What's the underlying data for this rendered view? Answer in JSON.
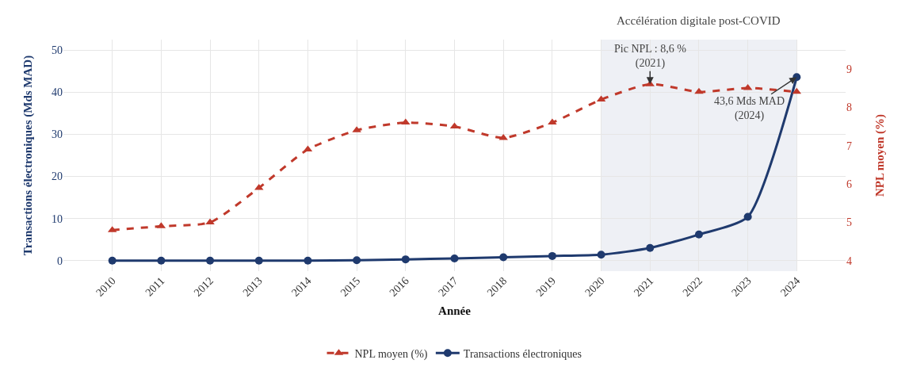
{
  "chart_data": {
    "type": "line",
    "xlabel": "Année",
    "ylabel": "Transactions électroniques (Mds MAD)",
    "y2label": "NPL moyen (%)",
    "categories": [
      "2010",
      "2011",
      "2012",
      "2013",
      "2014",
      "2015",
      "2016",
      "2017",
      "2018",
      "2019",
      "2020",
      "2021",
      "2022",
      "2023",
      "2024"
    ],
    "series": [
      {
        "name": "NPL moyen (%)",
        "color": "#c0392b",
        "axis": "y2",
        "marker": "triangle",
        "line_style": "dashed",
        "values": [
          4.8,
          4.9,
          5.0,
          5.9,
          6.9,
          7.4,
          7.6,
          7.5,
          7.2,
          7.6,
          8.2,
          8.6,
          8.4,
          8.5,
          8.4
        ]
      },
      {
        "name": "Transactions électroniques",
        "color": "#1f3a6e",
        "marker": "circle",
        "line_style": "solid",
        "values": [
          0,
          0,
          0,
          0,
          0,
          0.1,
          0.3,
          0.5,
          0.8,
          1.1,
          1.4,
          3.0,
          6.2,
          10.4,
          43.6
        ]
      }
    ],
    "ylim": [
      -2.5,
      52.5
    ],
    "yticks": [
      0,
      10,
      20,
      30,
      40,
      50
    ],
    "y2lim": [
      3.73,
      9.76
    ],
    "y2ticks": [
      4,
      5,
      6,
      7,
      8,
      9
    ],
    "bands": [
      {
        "axis": "x",
        "from": "2020",
        "to": "2024",
        "label": "Accélération digitale post-COVID",
        "color": "#eef0f5"
      }
    ],
    "annotations": [
      {
        "text": "Pic NPL : 8,6 %\n(2021)",
        "x": "2021",
        "y": 41.9
      },
      {
        "text": "43,6 Mds MAD\n(2024)",
        "x": "2024",
        "y": 43.6
      }
    ],
    "grid": true,
    "legend": "bottom"
  }
}
